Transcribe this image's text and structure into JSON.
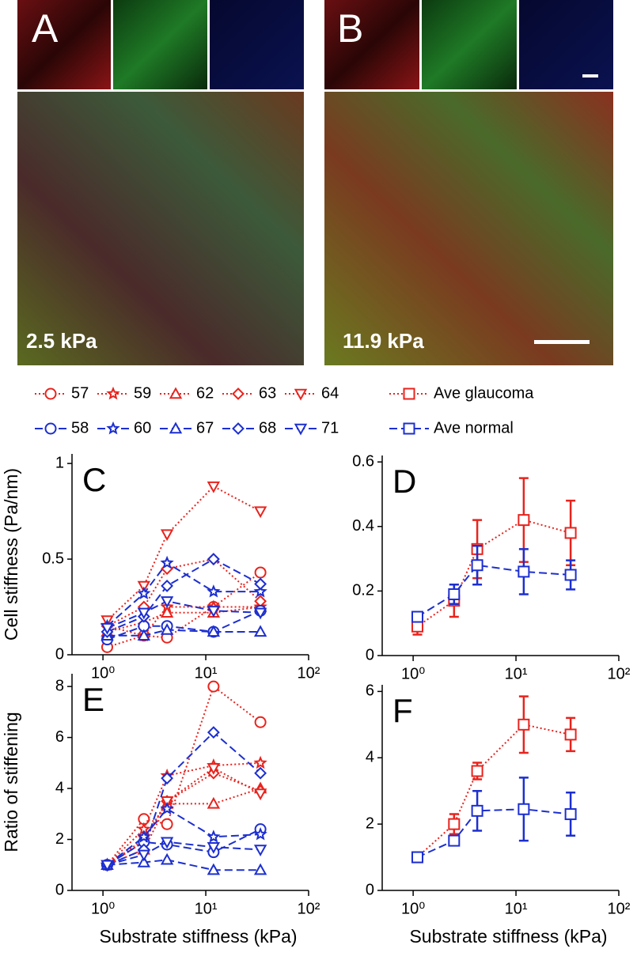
{
  "panels": [
    {
      "label": "A",
      "caption": "2.5 kPa"
    },
    {
      "label": "B",
      "caption": "11.9 kPa"
    }
  ],
  "chart_data": [
    {
      "type": "line",
      "title": "C",
      "ylabel": "Cell stiffness (Pa/nm)",
      "xscale": "log",
      "x": [
        1.1,
        2.5,
        4.2,
        11.9,
        34
      ],
      "xlim": [
        0.5,
        100
      ],
      "xticks": [
        {
          "value": 1,
          "label": "10⁰"
        },
        {
          "value": 10,
          "label": "10¹"
        },
        {
          "value": 100,
          "label": "10²"
        }
      ],
      "ylim": [
        0,
        1.05
      ],
      "yticks": [
        0,
        0.5,
        1
      ],
      "series": [
        {
          "name": "57",
          "color": "#e8231d",
          "marker": "circle",
          "dash": "dotted",
          "values": [
            0.04,
            0.1,
            0.09,
            0.25,
            0.43
          ]
        },
        {
          "name": "59",
          "color": "#e8231d",
          "marker": "star",
          "dash": "dotted",
          "values": [
            0.15,
            0.1,
            0.25,
            0.25,
            0.25
          ]
        },
        {
          "name": "62",
          "color": "#e8231d",
          "marker": "triangle-up",
          "dash": "dotted",
          "values": [
            0.12,
            0.17,
            0.22,
            0.22,
            0.25
          ]
        },
        {
          "name": "63",
          "color": "#e8231d",
          "marker": "diamond",
          "dash": "dotted",
          "values": [
            0.15,
            0.25,
            0.45,
            0.5,
            0.28
          ]
        },
        {
          "name": "64",
          "color": "#e8231d",
          "marker": "triangle-down",
          "dash": "dotted",
          "values": [
            0.18,
            0.36,
            0.63,
            0.88,
            0.75
          ]
        },
        {
          "name": "58",
          "color": "#1c2fd0",
          "marker": "circle",
          "dash": "dashed",
          "values": [
            0.08,
            0.15,
            0.15,
            0.12,
            0.23
          ]
        },
        {
          "name": "60",
          "color": "#1c2fd0",
          "marker": "star",
          "dash": "dashed",
          "values": [
            0.15,
            0.32,
            0.48,
            0.33,
            0.33
          ]
        },
        {
          "name": "67",
          "color": "#1c2fd0",
          "marker": "triangle-up",
          "dash": "dashed",
          "values": [
            0.1,
            0.1,
            0.13,
            0.12,
            0.12
          ]
        },
        {
          "name": "68",
          "color": "#1c2fd0",
          "marker": "diamond",
          "dash": "dashed",
          "values": [
            0.12,
            0.2,
            0.36,
            0.5,
            0.37
          ]
        },
        {
          "name": "71",
          "color": "#1c2fd0",
          "marker": "triangle-down",
          "dash": "dashed",
          "values": [
            0.14,
            0.22,
            0.28,
            0.23,
            0.22
          ]
        }
      ]
    },
    {
      "type": "line",
      "title": "D",
      "xscale": "log",
      "x": [
        1.1,
        2.5,
        4.2,
        11.9,
        34
      ],
      "xlim": [
        0.5,
        100
      ],
      "xticks": [
        {
          "value": 1,
          "label": "10⁰"
        },
        {
          "value": 10,
          "label": "10¹"
        },
        {
          "value": 100,
          "label": "10²"
        }
      ],
      "ylim": [
        0,
        0.62
      ],
      "yticks": [
        0,
        0.2,
        0.4,
        0.6
      ],
      "series": [
        {
          "name": "Ave glaucoma",
          "color": "#e8231d",
          "marker": "square",
          "dash": "dotted",
          "values": [
            0.09,
            0.17,
            0.33,
            0.42,
            0.38
          ],
          "errors": [
            0.025,
            0.05,
            0.09,
            0.13,
            0.1
          ]
        },
        {
          "name": "Ave normal",
          "color": "#1c2fd0",
          "marker": "square",
          "dash": "dashed",
          "values": [
            0.12,
            0.19,
            0.28,
            0.26,
            0.25
          ],
          "errors": [
            0.01,
            0.03,
            0.06,
            0.07,
            0.045
          ]
        }
      ]
    },
    {
      "type": "line",
      "title": "E",
      "ylabel": "Ratio of stiffening",
      "xlabel": "Substrate stiffness (kPa)",
      "xscale": "log",
      "x": [
        1.1,
        2.5,
        4.2,
        11.9,
        34
      ],
      "xlim": [
        0.5,
        100
      ],
      "xticks": [
        {
          "value": 1,
          "label": "10⁰"
        },
        {
          "value": 10,
          "label": "10¹"
        },
        {
          "value": 100,
          "label": "10²"
        }
      ],
      "ylim": [
        0,
        8.5
      ],
      "yticks": [
        0,
        2,
        4,
        6,
        8
      ],
      "series": [
        {
          "name": "57",
          "color": "#e8231d",
          "marker": "circle",
          "dash": "dotted",
          "values": [
            1,
            2.8,
            2.6,
            8.0,
            6.6
          ]
        },
        {
          "name": "59",
          "color": "#e8231d",
          "marker": "star",
          "dash": "dotted",
          "values": [
            1,
            2.4,
            4.5,
            4.9,
            5.0
          ]
        },
        {
          "name": "62",
          "color": "#e8231d",
          "marker": "triangle-up",
          "dash": "dotted",
          "values": [
            1,
            1.6,
            3.4,
            3.4,
            4.0
          ]
        },
        {
          "name": "63",
          "color": "#e8231d",
          "marker": "diamond",
          "dash": "dotted",
          "values": [
            1,
            1.9,
            3.5,
            4.6,
            3.9
          ]
        },
        {
          "name": "64",
          "color": "#e8231d",
          "marker": "triangle-down",
          "dash": "dotted",
          "values": [
            1,
            2.0,
            3.5,
            4.8,
            3.8
          ]
        },
        {
          "name": "58",
          "color": "#1c2fd0",
          "marker": "circle",
          "dash": "dashed",
          "values": [
            1,
            1.9,
            1.8,
            1.5,
            2.4
          ]
        },
        {
          "name": "60",
          "color": "#1c2fd0",
          "marker": "star",
          "dash": "dashed",
          "values": [
            1,
            2.1,
            3.2,
            2.1,
            2.2
          ]
        },
        {
          "name": "67",
          "color": "#1c2fd0",
          "marker": "triangle-up",
          "dash": "dashed",
          "values": [
            1,
            1.1,
            1.2,
            0.8,
            0.8
          ]
        },
        {
          "name": "68",
          "color": "#1c2fd0",
          "marker": "diamond",
          "dash": "dashed",
          "values": [
            1,
            1.6,
            4.4,
            6.2,
            4.6
          ]
        },
        {
          "name": "71",
          "color": "#1c2fd0",
          "marker": "triangle-down",
          "dash": "dashed",
          "values": [
            1,
            1.4,
            1.9,
            1.7,
            1.6
          ]
        }
      ]
    },
    {
      "type": "line",
      "title": "F",
      "xlabel": "Substrate stiffness (kPa)",
      "xscale": "log",
      "x": [
        1.1,
        2.5,
        4.2,
        11.9,
        34
      ],
      "xlim": [
        0.5,
        100
      ],
      "xticks": [
        {
          "value": 1,
          "label": "10⁰"
        },
        {
          "value": 10,
          "label": "10¹"
        },
        {
          "value": 100,
          "label": "10²"
        }
      ],
      "ylim": [
        0,
        6.2
      ],
      "yticks": [
        0,
        2,
        4,
        6
      ],
      "series": [
        {
          "name": "Ave glaucoma",
          "color": "#e8231d",
          "marker": "square",
          "dash": "dotted",
          "values": [
            1,
            2.0,
            3.6,
            5.0,
            4.7
          ],
          "errors": [
            0,
            0.3,
            0.25,
            0.85,
            0.5
          ]
        },
        {
          "name": "Ave normal",
          "color": "#1c2fd0",
          "marker": "square",
          "dash": "dashed",
          "values": [
            1,
            1.5,
            2.4,
            2.45,
            2.3
          ],
          "errors": [
            0,
            0.1,
            0.6,
            0.95,
            0.65
          ]
        }
      ]
    }
  ]
}
